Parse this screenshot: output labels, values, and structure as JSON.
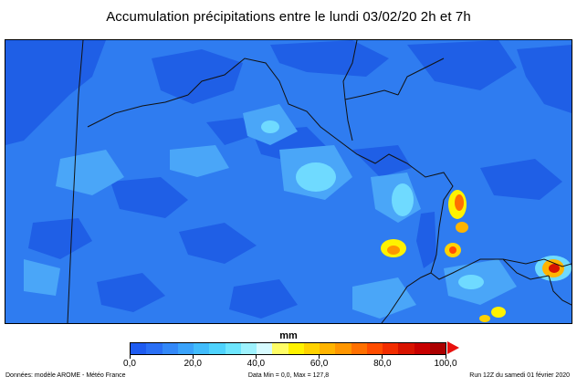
{
  "title": "Accumulation précipitations entre le lundi 03/02/20 2h et 7h",
  "colorbar": {
    "unit": "mm",
    "tick_labels": [
      "0,0",
      "20,0",
      "40,0",
      "60,0",
      "80,0",
      "100,0"
    ],
    "tick_values": [
      0,
      20,
      40,
      60,
      80,
      100
    ],
    "max": 100,
    "colors": [
      "#1e5bf0",
      "#2a6ff5",
      "#3388f8",
      "#3aa3fb",
      "#41bcfc",
      "#4fd3fd",
      "#6ee6fe",
      "#9ef2fe",
      "#d7fbff",
      "#fffd66",
      "#fff200",
      "#ffd200",
      "#ffb400",
      "#ff9600",
      "#ff7000",
      "#ff4c00",
      "#f22d00",
      "#d81300",
      "#c80000",
      "#ac0000"
    ],
    "arrow_color": "#e8110e"
  },
  "footer": {
    "source": "Données: modèle AROME - Météo France",
    "stats": "Data Min = 0,0, Max = 127,8",
    "run": "Run 12Z du samedi 01 février 2020"
  },
  "map": {
    "background_color": "#2f7cf0",
    "border_color": "#111111"
  }
}
